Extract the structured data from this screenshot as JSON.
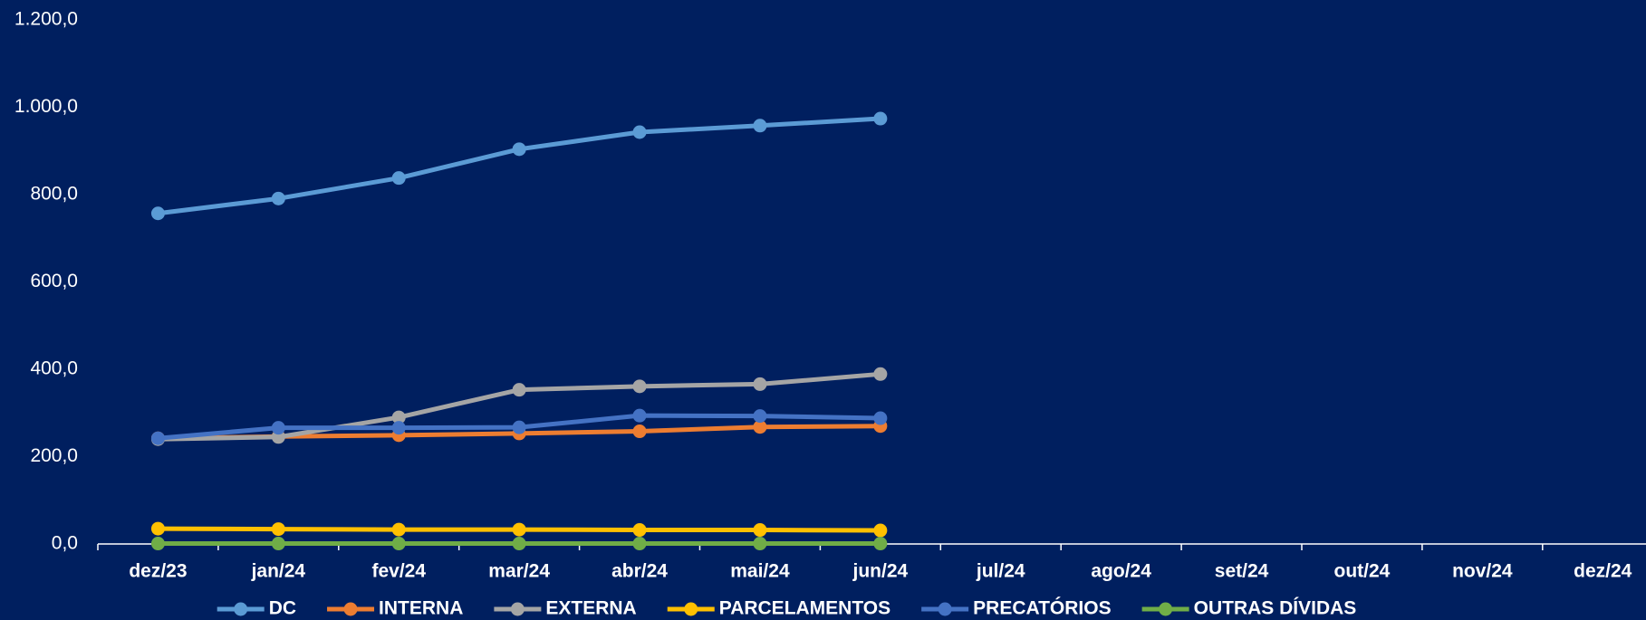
{
  "chart_data": {
    "type": "line",
    "categories": [
      "dez/23",
      "jan/24",
      "fev/24",
      "mar/24",
      "abr/24",
      "mai/24",
      "jun/24",
      "jul/24",
      "ago/24",
      "set/24",
      "out/24",
      "nov/24",
      "dez/24"
    ],
    "series": [
      {
        "name": "DC",
        "color": "#5b9bd5",
        "values": [
          757,
          791,
          838,
          904,
          943,
          958,
          974,
          null,
          null,
          null,
          null,
          null,
          null
        ]
      },
      {
        "name": "INTERNA",
        "color": "#ed7d31",
        "values": [
          242,
          246,
          249,
          253,
          258,
          268,
          270,
          null,
          null,
          null,
          null,
          null,
          null
        ]
      },
      {
        "name": "EXTERNA",
        "color": "#a5a5a5",
        "values": [
          240,
          245,
          290,
          353,
          361,
          366,
          389,
          null,
          null,
          null,
          null,
          null,
          null
        ]
      },
      {
        "name": "PARCELAMENTOS",
        "color": "#ffc000",
        "values": [
          35,
          34,
          33,
          33,
          32,
          32,
          31,
          null,
          null,
          null,
          null,
          null,
          null
        ]
      },
      {
        "name": "PRECATÓRIOS",
        "color": "#4472c4",
        "values": [
          242,
          266,
          266,
          267,
          294,
          293,
          288,
          null,
          null,
          null,
          null,
          null,
          null
        ]
      },
      {
        "name": "OUTRAS DÍVIDAS",
        "color": "#70ad47",
        "values": [
          1,
          1,
          1,
          1,
          1,
          1,
          1,
          null,
          null,
          null,
          null,
          null,
          null
        ]
      }
    ],
    "ylim": [
      0,
      1200
    ],
    "yticks": [
      {
        "value": 0,
        "label": "0,0"
      },
      {
        "value": 200,
        "label": "200,0"
      },
      {
        "value": 400,
        "label": "400,0"
      },
      {
        "value": 600,
        "label": "600,0"
      },
      {
        "value": 800,
        "label": "800,0"
      },
      {
        "value": 1000,
        "label": "1.000,0"
      },
      {
        "value": 1200,
        "label": "1.200,0"
      }
    ],
    "grid": false,
    "legend": "bottom"
  }
}
